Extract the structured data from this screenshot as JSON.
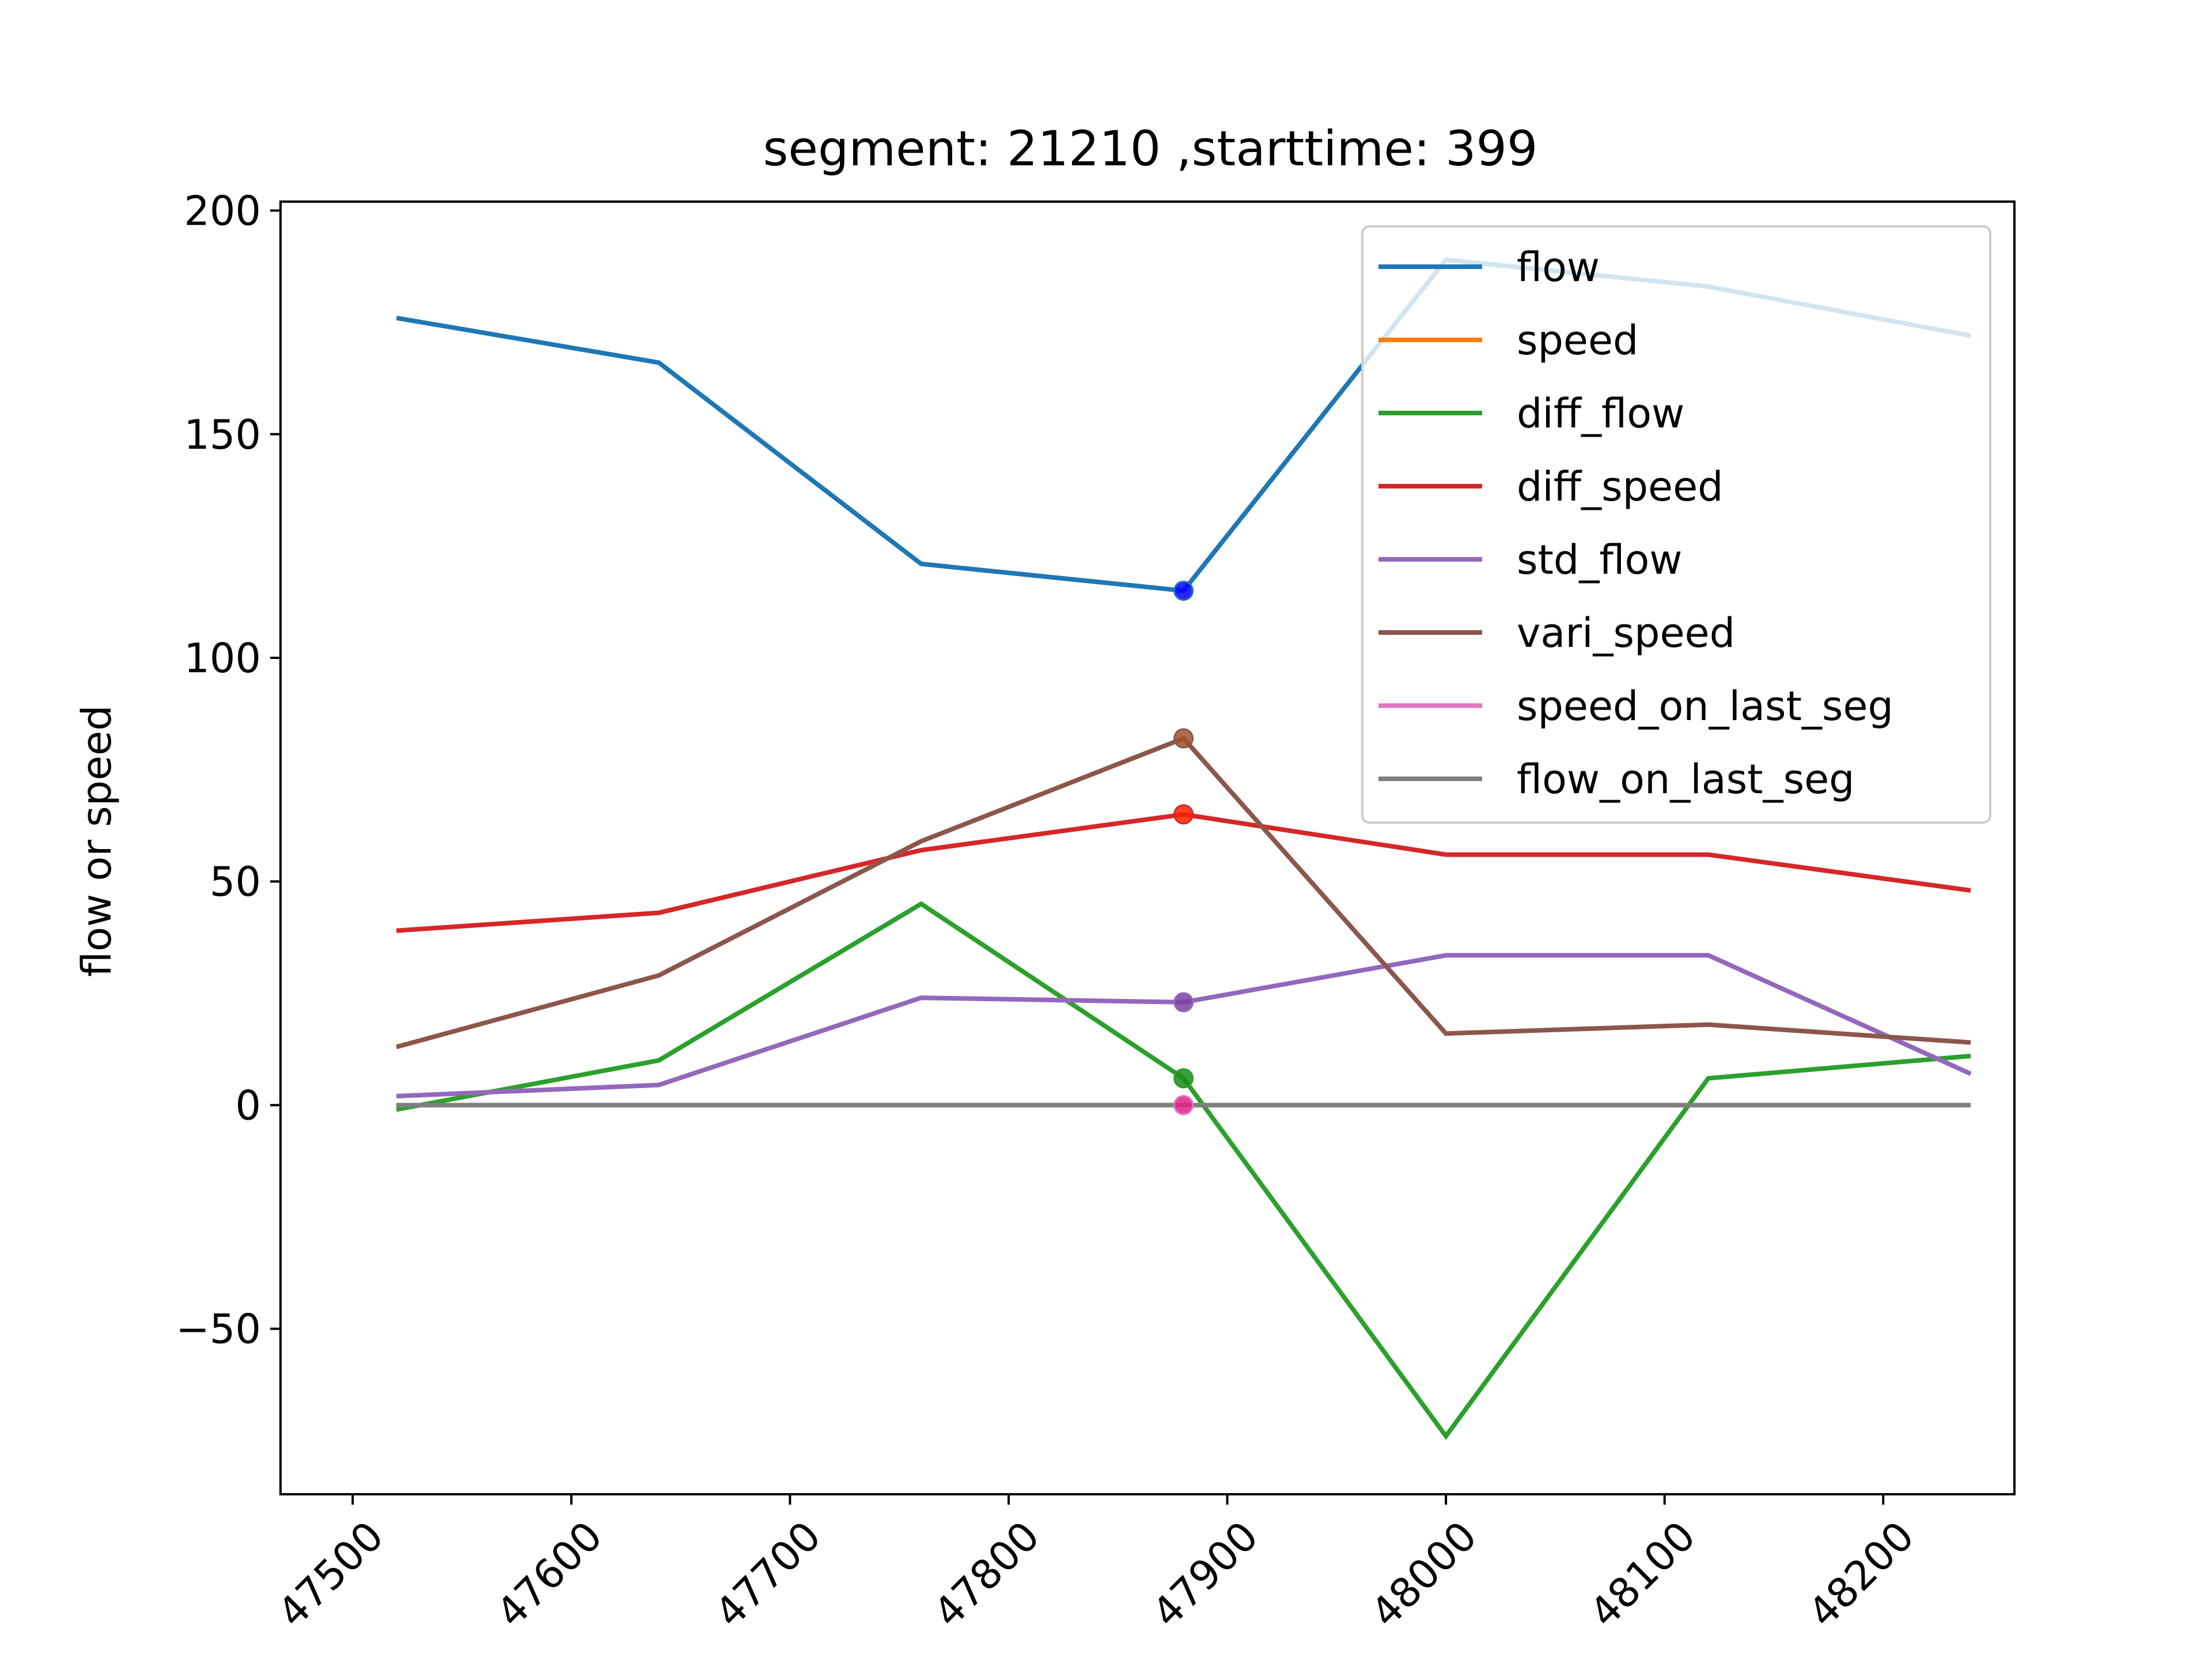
{
  "chart_data": {
    "type": "line",
    "title": "segment: 21210 ,starttime: 399",
    "xlabel": "",
    "ylabel": "flow or speed",
    "xlim": [
      47467,
      48260
    ],
    "ylim": [
      -87,
      202
    ],
    "xticks": [
      47500,
      47600,
      47700,
      47800,
      47900,
      48000,
      48100,
      48200
    ],
    "yticks": [
      -50,
      0,
      50,
      100,
      150,
      200
    ],
    "ytick_labels": [
      "−50",
      "0",
      "50",
      "100",
      "150",
      "200"
    ],
    "x": [
      47520,
      47640,
      47760,
      47880,
      48000,
      48120,
      48240
    ],
    "grid": false,
    "legend_position": "upper-right",
    "highlight_x": 47880,
    "series": [
      {
        "name": "flow",
        "color": "#1f77b4",
        "marker_color": "#0000ff",
        "values": [
          176,
          166,
          121,
          115,
          189,
          183,
          172
        ]
      },
      {
        "name": "speed",
        "color": "#ff7f0e",
        "values": [
          null,
          null,
          null,
          null,
          null,
          null,
          null
        ]
      },
      {
        "name": "diff_flow",
        "color": "#2ca02c",
        "marker_color": "#1a8c1a",
        "values": [
          -1,
          10,
          45,
          6,
          -74,
          6,
          11
        ]
      },
      {
        "name": "diff_speed",
        "color": "#d62728",
        "marker_color": "#ff2200",
        "values": [
          39,
          43,
          57,
          65,
          56,
          56,
          48
        ]
      },
      {
        "name": "std_flow",
        "color": "#9467bd",
        "marker_color": "#7b3fa0",
        "values": [
          2,
          4.5,
          24,
          23,
          33.5,
          33.5,
          7
        ]
      },
      {
        "name": "vari_speed",
        "color": "#8c564b",
        "marker_color": "#a0522d",
        "values": [
          13,
          29,
          59,
          82,
          16,
          18,
          14
        ]
      },
      {
        "name": "speed_on_last_seg",
        "color": "#e377c2",
        "marker_color": "#e0218a",
        "values": [
          0,
          0,
          0,
          0,
          0,
          0,
          0
        ]
      },
      {
        "name": "flow_on_last_seg",
        "color": "#7f7f7f",
        "values": [
          0,
          0,
          0,
          0,
          0,
          0,
          0
        ]
      }
    ]
  }
}
